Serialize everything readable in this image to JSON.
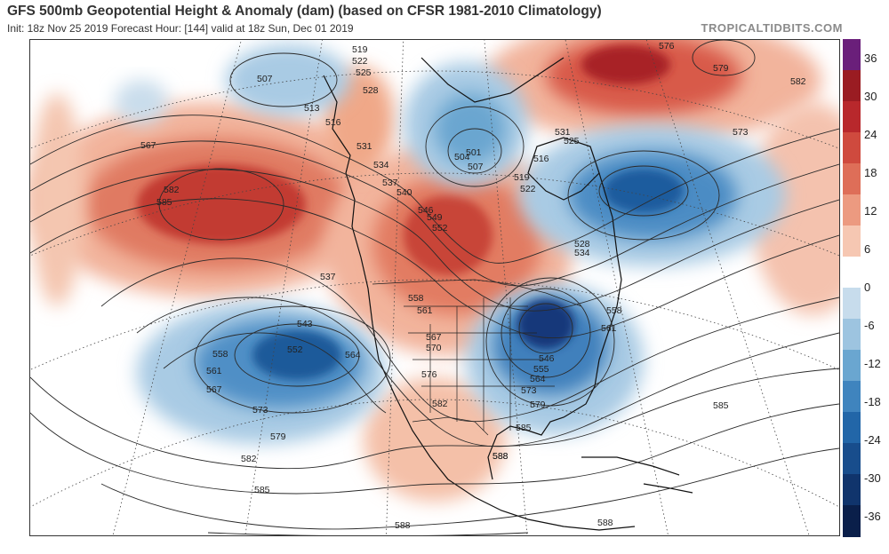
{
  "header": {
    "title": "GFS 500mb Geopotential Height & Anomaly (dam) (based on CFSR 1981-2010 Climatology)",
    "subtitle": "Init: 18z Nov 25 2019   Forecast Hour: [144]   valid at 18z Sun, Dec 01 2019",
    "brand": "TROPICALTIDBITS.COM"
  },
  "colorbar": {
    "labels": [
      "36",
      "30",
      "24",
      "18",
      "12",
      "6",
      "0",
      "-6",
      "-12",
      "-18",
      "-24",
      "-30",
      "-36"
    ],
    "colors": [
      "#6a1f7a",
      "#9a1c22",
      "#b8282c",
      "#cf4a3e",
      "#de6e58",
      "#ec9a80",
      "#f6c7b2",
      "#ffffff",
      "#c7dcec",
      "#9dc4e0",
      "#6aa6d0",
      "#3f84be",
      "#2266a8",
      "#184d8c",
      "#10346c",
      "#0a1f4a"
    ]
  },
  "contours": {
    "heights": [
      "507",
      "513",
      "516",
      "519",
      "522",
      "525",
      "528",
      "531",
      "534",
      "537",
      "540",
      "546",
      "549",
      "552",
      "504",
      "501",
      "507",
      "516",
      "519",
      "522",
      "525",
      "531",
      "528",
      "534",
      "567",
      "582",
      "585",
      "537",
      "543",
      "558",
      "561",
      "567",
      "573",
      "579",
      "582",
      "585",
      "552",
      "564",
      "558",
      "561",
      "567",
      "570",
      "576",
      "582",
      "546",
      "555",
      "564",
      "573",
      "579",
      "585",
      "588",
      "558",
      "561",
      "573",
      "576",
      "579",
      "582",
      "585",
      "588",
      "588",
      "588"
    ]
  }
}
